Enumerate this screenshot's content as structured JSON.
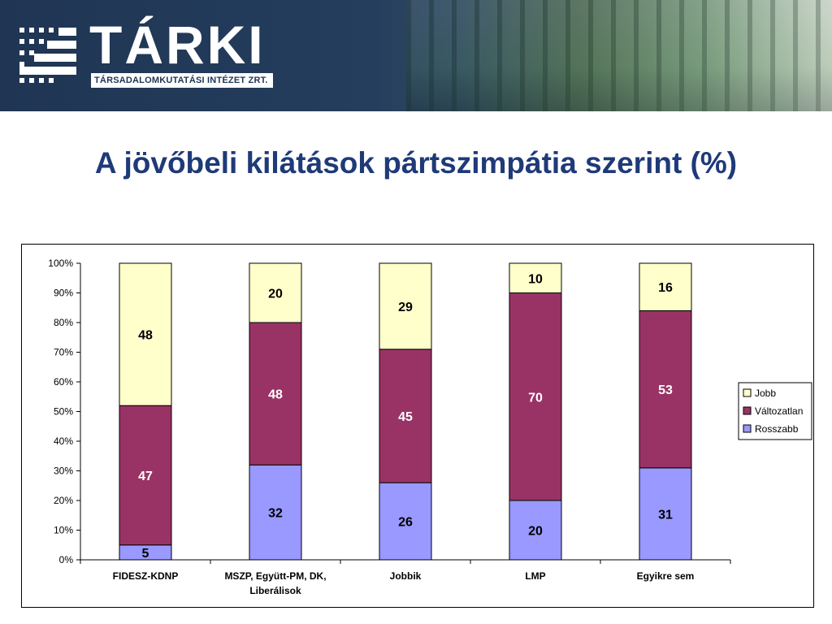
{
  "header": {
    "logo_text": "TÁRKI",
    "logo_subtitle": "TÁRSADALOMKUTATÁSI INTÉZET ZRT."
  },
  "page_title": "A jövőbeli kilátások pártszimpátia szerint (%)",
  "colors": {
    "title": "#1f3a78",
    "rosszabb": "#9999ff",
    "valtozatlan": "#993366",
    "jobb": "#ffffcc"
  },
  "chart_data": {
    "type": "bar",
    "stacked": true,
    "percent_axis": true,
    "categories": [
      "FIDESZ-KDNP",
      "MSZP, Együtt-PM, DK, Liberálisok",
      "Jobbik",
      "LMP",
      "Egyikre sem"
    ],
    "category_label_lines": [
      [
        "FIDESZ-KDNP"
      ],
      [
        "MSZP, Együtt-PM, DK,",
        "Liberálisok"
      ],
      [
        "Jobbik"
      ],
      [
        "LMP"
      ],
      [
        "Egyikre sem"
      ]
    ],
    "series": [
      {
        "name": "Rosszabb",
        "values": [
          5,
          32,
          26,
          20,
          31
        ],
        "color": "#9999ff"
      },
      {
        "name": "Változatlan",
        "values": [
          47,
          48,
          45,
          70,
          53
        ],
        "color": "#993366"
      },
      {
        "name": "Jobb",
        "values": [
          48,
          20,
          29,
          10,
          16
        ],
        "color": "#ffffcc"
      }
    ],
    "label_colors": [
      "#000000",
      "#ffffff",
      "#000000"
    ],
    "ylim": [
      0,
      100
    ],
    "yticks": [
      "0%",
      "10%",
      "20%",
      "30%",
      "40%",
      "50%",
      "60%",
      "70%",
      "80%",
      "90%",
      "100%"
    ],
    "title": "",
    "xlabel": "",
    "ylabel": "",
    "grid": false,
    "legend_position": "right",
    "legend_order": [
      "Jobb",
      "Változatlan",
      "Rosszabb"
    ]
  }
}
